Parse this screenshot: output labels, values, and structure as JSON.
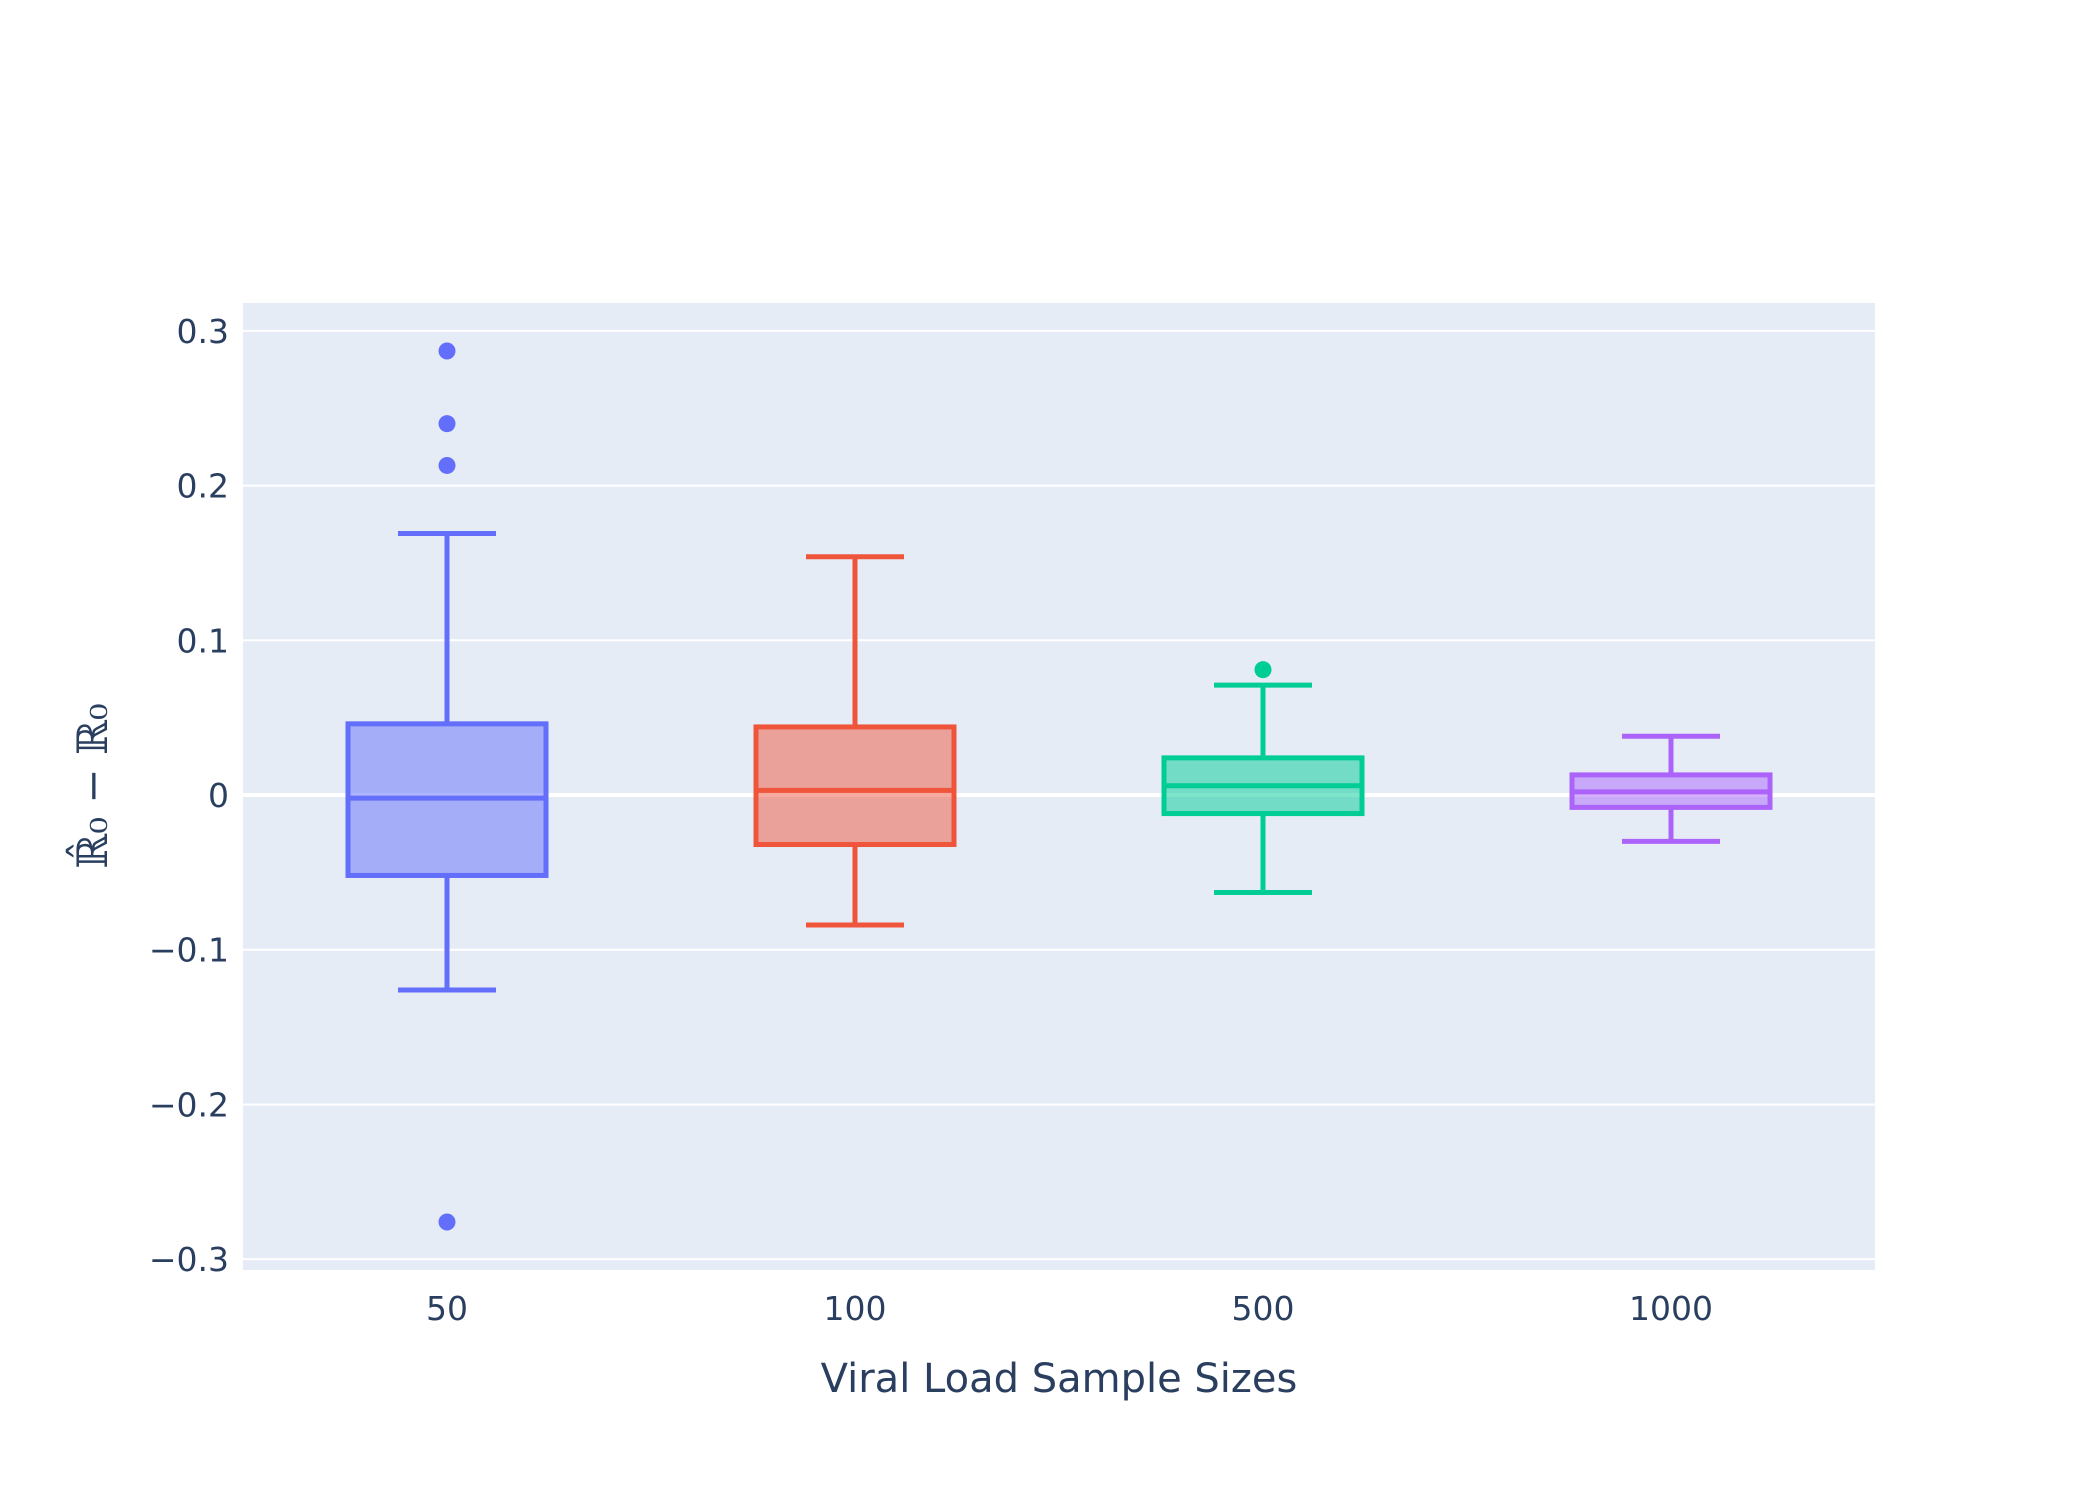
{
  "chart_data": {
    "type": "box",
    "title": "",
    "xlabel": "Viral Load Sample Sizes",
    "ylabel": "ℝ̂₀ − ℝ₀",
    "ylim": [
      -0.307,
      0.318
    ],
    "yticks": [
      -0.3,
      -0.2,
      -0.1,
      0,
      0.1,
      0.2,
      0.3
    ],
    "ytick_labels": [
      "−0.3",
      "−0.2",
      "−0.1",
      "0",
      "0.1",
      "0.2",
      "0.3"
    ],
    "grid": true,
    "legend": false,
    "categories": [
      "50",
      "100",
      "500",
      "1000"
    ],
    "series": [
      {
        "category": "50",
        "color": "#636efa",
        "whisker_low": -0.126,
        "q1": -0.052,
        "median": -0.002,
        "q3": 0.046,
        "whisker_high": 0.169,
        "outliers": [
          0.287,
          0.24,
          0.213,
          -0.276
        ]
      },
      {
        "category": "100",
        "color": "#ef553b",
        "whisker_low": -0.084,
        "q1": -0.032,
        "median": 0.003,
        "q3": 0.044,
        "whisker_high": 0.154,
        "outliers": []
      },
      {
        "category": "500",
        "color": "#00cc96",
        "whisker_low": -0.063,
        "q1": -0.012,
        "median": 0.006,
        "q3": 0.024,
        "whisker_high": 0.071,
        "outliers": [
          0.081
        ]
      },
      {
        "category": "1000",
        "color": "#ab63fa",
        "whisker_low": -0.03,
        "q1": -0.008,
        "median": 0.002,
        "q3": 0.013,
        "whisker_high": 0.038,
        "outliers": []
      }
    ]
  }
}
